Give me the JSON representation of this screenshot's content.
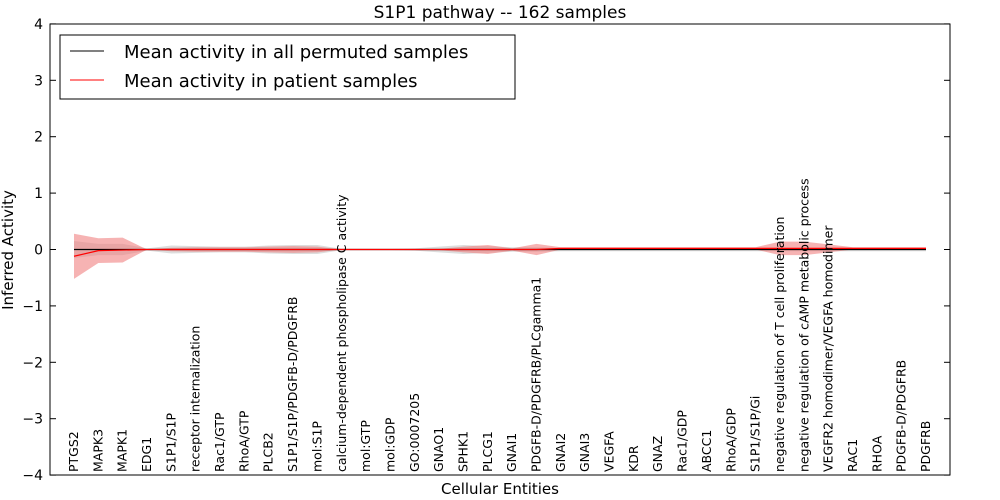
{
  "chart_data": {
    "type": "line",
    "title": "S1P1 pathway -- 162 samples",
    "xlabel": "Cellular Entities",
    "ylabel": "Inferred Activity",
    "ylim": [
      -4,
      4
    ],
    "yticks": [
      "−4",
      "−3",
      "−2",
      "−1",
      "0",
      "1",
      "2",
      "3",
      "4"
    ],
    "ytick_values": [
      -4,
      -3,
      -2,
      -1,
      0,
      1,
      2,
      3,
      4
    ],
    "legend_placement": "top-left",
    "categories": [
      "PTGS2",
      "MAPK3",
      "MAPK1",
      "EDG1",
      "S1P1/S1P",
      "receptor internalization",
      "Rac1/GTP",
      "RhoA/GTP",
      "PLCB2",
      "S1P1/S1P/PDGFB-D/PDGFRB",
      "mol:S1P",
      "calcium-dependent phospholipase C activity",
      "mol:GTP",
      "mol:GDP",
      "GO:0007205",
      "GNAO1",
      "SPHK1",
      "PLCG1",
      "GNAI1",
      "PDGFB-D/PDGFRB/PLCgamma1",
      "GNAI2",
      "GNAI3",
      "VEGFA",
      "KDR",
      "GNAZ",
      "Rac1/GDP",
      "ABCC1",
      "RhoA/GDP",
      "S1P1/S1P/Gi",
      "negative regulation of T cell proliferation",
      "negative regulation of cAMP metabolic process",
      "VEGFR2 homodimer/VEGFA homodimer",
      "RAC1",
      "RHOA",
      "PDGFB-D/PDGFRB",
      "PDGFRB"
    ],
    "series": [
      {
        "name": "Mean activity in all permuted samples",
        "color": "#000000",
        "band_color": "#bbbbbb",
        "values": [
          0,
          0,
          0,
          0,
          0,
          0,
          0,
          0,
          0,
          0,
          0,
          0,
          0,
          0,
          0,
          0,
          0,
          0,
          0,
          0,
          0,
          0,
          0,
          0,
          0,
          0,
          0,
          0,
          0,
          0,
          0,
          0,
          0,
          0,
          0,
          0
        ],
        "spread": [
          0.15,
          0.1,
          0.1,
          0.02,
          0.07,
          0.06,
          0.05,
          0.05,
          0.07,
          0.08,
          0.08,
          0.01,
          0.01,
          0.01,
          0.02,
          0.05,
          0.08,
          0.06,
          0.04,
          0.04,
          0.03,
          0.03,
          0.03,
          0.03,
          0.03,
          0.03,
          0.03,
          0.03,
          0.03,
          0.03,
          0.03,
          0.03,
          0.03,
          0.03,
          0.03,
          0.03
        ]
      },
      {
        "name": "Mean activity in patient samples",
        "color": "#ff0000",
        "band_color": "#f08080",
        "values": [
          -0.12,
          -0.02,
          -0.01,
          0,
          0,
          0,
          0,
          0,
          0,
          0,
          0,
          0,
          0,
          0,
          0,
          0,
          0,
          0,
          0,
          0,
          0.02,
          0.02,
          0.02,
          0.02,
          0.02,
          0.02,
          0.02,
          0.02,
          0.02,
          0.02,
          0.02,
          0.02,
          0.02,
          0.02,
          0.02,
          0.02
        ],
        "spread": [
          0.4,
          0.22,
          0.22,
          0,
          0.03,
          0.04,
          0.04,
          0.04,
          0.05,
          0.06,
          0.05,
          0,
          0,
          0,
          0,
          0.01,
          0.05,
          0.08,
          0.02,
          0.1,
          0.02,
          0.02,
          0.02,
          0.02,
          0.02,
          0.02,
          0.02,
          0.02,
          0.02,
          0.12,
          0.12,
          0.07,
          0.02,
          0.02,
          0.02,
          0.02
        ]
      }
    ]
  }
}
